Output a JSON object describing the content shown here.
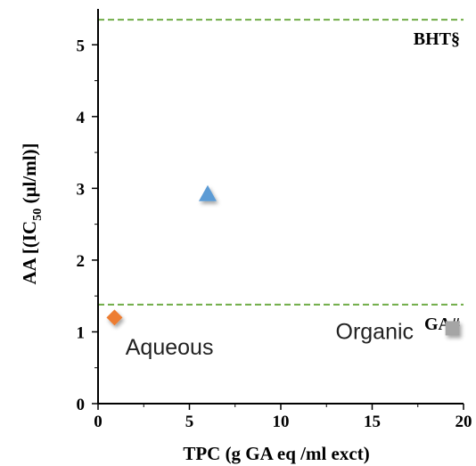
{
  "chart_data": {
    "type": "scatter",
    "xlabel": "TPC (g GA eq /ml exct)",
    "ylabel_parts": {
      "before": "AA [(IC",
      "sub": "50",
      "after": " (µl/ml)]"
    },
    "xlim": [
      0,
      20
    ],
    "ylim": [
      0,
      5.5
    ],
    "x_ticks": [
      0,
      5,
      10,
      15,
      20
    ],
    "y_ticks": [
      0,
      1,
      2,
      3,
      4,
      5
    ],
    "grid": false,
    "legend": "none",
    "points": [
      {
        "x": 0.9,
        "y": 1.2,
        "marker": "diamond",
        "color": "#ED7D31"
      },
      {
        "x": 6.0,
        "y": 2.92,
        "marker": "triangle",
        "color": "#5B9BD5"
      },
      {
        "x": 19.4,
        "y": 1.05,
        "marker": "square",
        "color": "#A5A5A5"
      }
    ],
    "reference_lines": [
      {
        "label": "BHT§",
        "y": 5.35,
        "color": "#70AD47",
        "style": "dashed"
      },
      {
        "label": "GA#",
        "y": 1.38,
        "color": "#70AD47",
        "style": "dashed"
      }
    ],
    "annotations": [
      {
        "text": "Aqueous",
        "x": 1.5,
        "y": 0.78
      },
      {
        "text": "Organic",
        "x": 13.0,
        "y": 1.0
      }
    ]
  }
}
